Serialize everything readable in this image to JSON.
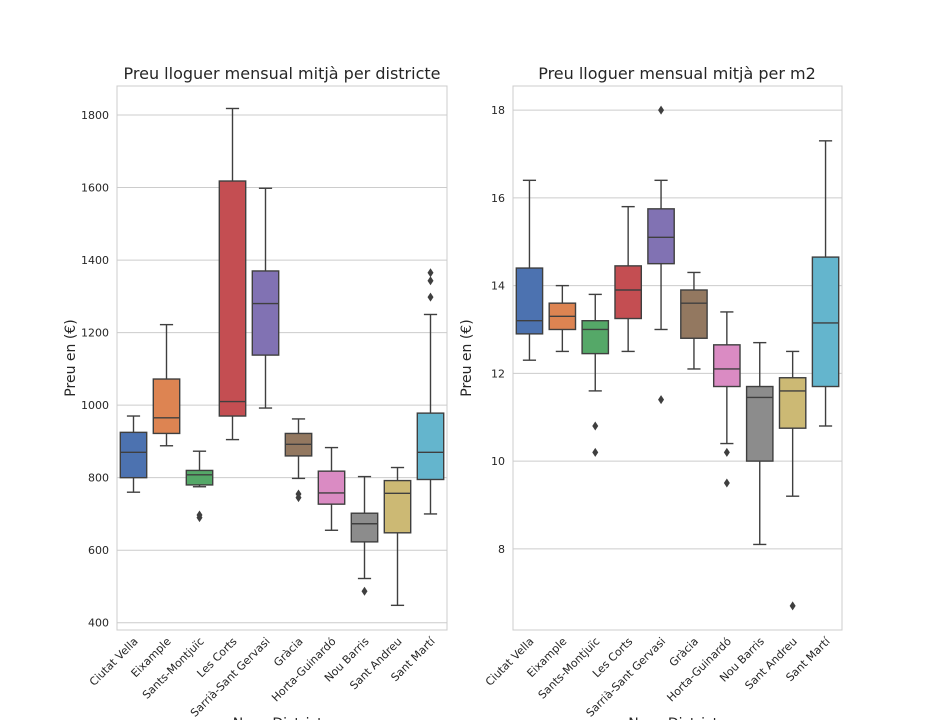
{
  "chart_data": [
    {
      "type": "box",
      "title": "Preu lloguer mensual mitjà per districte",
      "ylabel": "Preu en (€)",
      "xlabel": "Nom_Districte",
      "ylim": [
        380,
        1880
      ],
      "yticks": [
        400,
        600,
        800,
        1000,
        1200,
        1400,
        1600,
        1800
      ],
      "grid": "horizontal",
      "categories": [
        "Ciutat Vella",
        "Eixample",
        "Sants-Montjuïc",
        "Les Corts",
        "Sarrià-Sant Gervasi",
        "Gràcia",
        "Horta-Guinardó",
        "Nou Barris",
        "Sant Andreu",
        "Sant Martí"
      ],
      "boxes": [
        {
          "whislo": 760,
          "q1": 800,
          "med": 870,
          "q3": 925,
          "whishi": 970,
          "fliers": []
        },
        {
          "whislo": 888,
          "q1": 922,
          "med": 965,
          "q3": 1072,
          "whishi": 1222,
          "fliers": []
        },
        {
          "whislo": 775,
          "q1": 780,
          "med": 808,
          "q3": 820,
          "whishi": 873,
          "fliers": [
            690,
            697
          ]
        },
        {
          "whislo": 905,
          "q1": 970,
          "med": 1010,
          "q3": 1618,
          "whishi": 1818,
          "fliers": []
        },
        {
          "whislo": 992,
          "q1": 1138,
          "med": 1280,
          "q3": 1370,
          "whishi": 1598,
          "fliers": []
        },
        {
          "whislo": 798,
          "q1": 860,
          "med": 892,
          "q3": 922,
          "whishi": 962,
          "fliers": [
            745,
            755
          ]
        },
        {
          "whislo": 655,
          "q1": 727,
          "med": 758,
          "q3": 818,
          "whishi": 883,
          "fliers": []
        },
        {
          "whislo": 522,
          "q1": 623,
          "med": 673,
          "q3": 702,
          "whishi": 803,
          "fliers": [
            487
          ]
        },
        {
          "whislo": 448,
          "q1": 648,
          "med": 757,
          "q3": 792,
          "whishi": 828,
          "fliers": []
        },
        {
          "whislo": 700,
          "q1": 795,
          "med": 870,
          "q3": 978,
          "whishi": 1250,
          "fliers": [
            1298,
            1343,
            1365
          ]
        }
      ]
    },
    {
      "type": "box",
      "title": "Preu lloguer mensual mitjà per m2",
      "ylabel": "Preu en (€)",
      "xlabel": "Nom_Districte",
      "ylim": [
        6.15,
        18.55
      ],
      "yticks": [
        8,
        10,
        12,
        14,
        16,
        18
      ],
      "grid": "horizontal",
      "categories": [
        "Ciutat Vella",
        "Eixample",
        "Sants-Montjuïc",
        "Les Corts",
        "Sarrià-Sant Gervasi",
        "Gràcia",
        "Horta-Guinardó",
        "Nou Barris",
        "Sant Andreu",
        "Sant Martí"
      ],
      "boxes": [
        {
          "whislo": 12.3,
          "q1": 12.9,
          "med": 13.2,
          "q3": 14.4,
          "whishi": 16.4,
          "fliers": []
        },
        {
          "whislo": 12.5,
          "q1": 13.0,
          "med": 13.3,
          "q3": 13.6,
          "whishi": 14.0,
          "fliers": []
        },
        {
          "whislo": 11.6,
          "q1": 12.45,
          "med": 13.0,
          "q3": 13.2,
          "whishi": 13.8,
          "fliers": [
            10.2,
            10.8
          ]
        },
        {
          "whislo": 12.5,
          "q1": 13.25,
          "med": 13.9,
          "q3": 14.45,
          "whishi": 15.8,
          "fliers": []
        },
        {
          "whislo": 13.0,
          "q1": 14.5,
          "med": 15.1,
          "q3": 15.75,
          "whishi": 16.4,
          "fliers": [
            11.4,
            18.0
          ]
        },
        {
          "whislo": 12.1,
          "q1": 12.8,
          "med": 13.6,
          "q3": 13.9,
          "whishi": 14.3,
          "fliers": []
        },
        {
          "whislo": 10.4,
          "q1": 11.7,
          "med": 12.1,
          "q3": 12.65,
          "whishi": 13.4,
          "fliers": [
            9.5,
            10.2
          ]
        },
        {
          "whislo": 8.1,
          "q1": 10.0,
          "med": 11.45,
          "q3": 11.7,
          "whishi": 12.7,
          "fliers": []
        },
        {
          "whislo": 9.2,
          "q1": 10.75,
          "med": 11.6,
          "q3": 11.9,
          "whishi": 12.5,
          "fliers": [
            6.7
          ]
        },
        {
          "whislo": 10.8,
          "q1": 11.7,
          "med": 13.15,
          "q3": 14.65,
          "whishi": 17.3,
          "fliers": []
        }
      ]
    }
  ],
  "colors": [
    "#4c72b0",
    "#dd8452",
    "#55a868",
    "#c44e52",
    "#8172b3",
    "#937860",
    "#da8bc3",
    "#8c8c8c",
    "#ccb974",
    "#64b5cd"
  ],
  "line_color": "#3f3f3f",
  "grid_color": "#cccccc",
  "spine_color": "#cccccc"
}
